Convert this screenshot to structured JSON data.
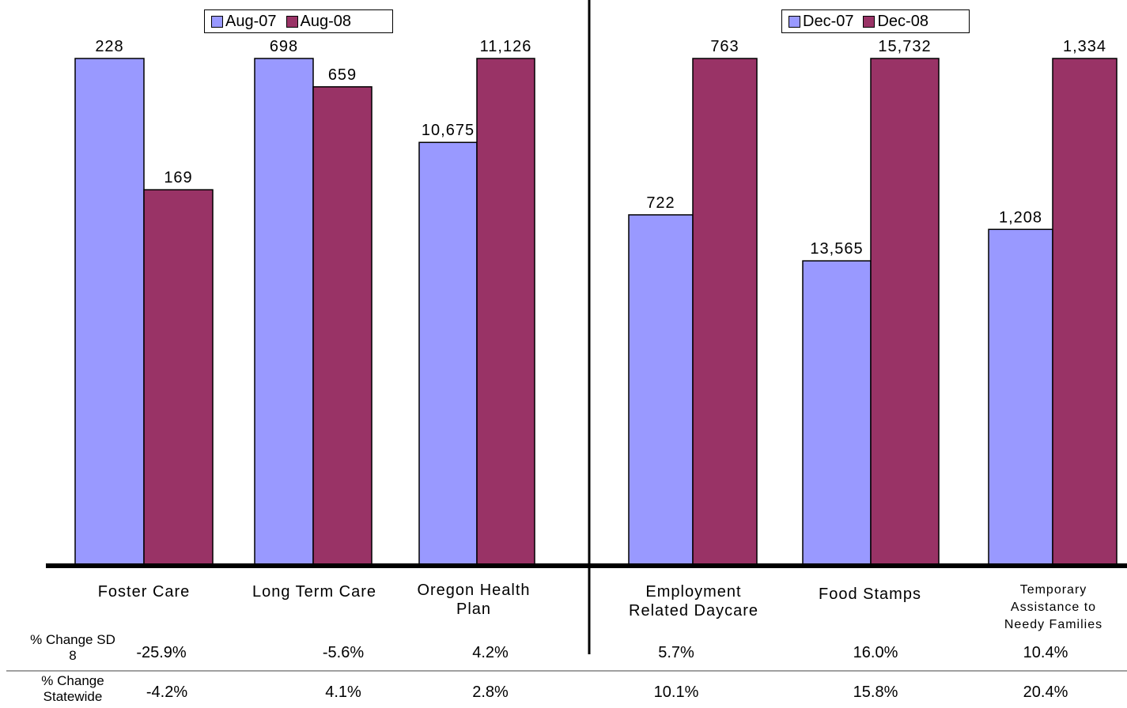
{
  "chart_data": {
    "type": "bar",
    "colors": {
      "first": "#9999ff",
      "second": "#993366"
    },
    "groups": [
      {
        "legend": [
          "Aug-07",
          "Aug-08"
        ],
        "categories": [
          "Foster Care",
          "Long Term Care",
          "Oregon Health Plan"
        ],
        "series": [
          {
            "name": "Aug-07",
            "values": [
              228,
              698,
              10675
            ],
            "labels": [
              "228",
              "698",
              "10,675"
            ]
          },
          {
            "name": "Aug-08",
            "values": [
              169,
              659,
              11126
            ],
            "labels": [
              "169",
              "659",
              "11,126"
            ]
          }
        ]
      },
      {
        "legend": [
          "Dec-07",
          "Dec-08"
        ],
        "categories": [
          "Employment Related Daycare",
          "Food Stamps",
          "Temporary Assistance to Needy Families"
        ],
        "series": [
          {
            "name": "Dec-07",
            "values": [
              722,
              13565,
              1208
            ],
            "labels": [
              "722",
              "13,565",
              "1,208"
            ]
          },
          {
            "name": "Dec-08",
            "values": [
              763,
              15732,
              1334
            ],
            "labels": [
              "763",
              "15,732",
              "1,334"
            ]
          }
        ]
      }
    ],
    "scale_note": "each category is scaled independently"
  },
  "legend_left": {
    "a": "Aug-07",
    "b": "Aug-08"
  },
  "legend_right": {
    "a": "Dec-07",
    "b": "Dec-08"
  },
  "categories": {
    "c1": "Foster Care",
    "c2": "Long Term Care",
    "c3": "Oregon Health Plan",
    "c4": "Employment Related Daycare",
    "c5": "Food Stamps",
    "c6": "Temporary Assistance to Needy Families"
  },
  "table": {
    "row1_label": "% Change SD 8",
    "row1": [
      "-25.9%",
      "-5.6%",
      "4.2%",
      "5.7%",
      "16.0%",
      "10.4%"
    ],
    "row2_label": "% Change Statewide",
    "row2": [
      "-4.2%",
      "4.1%",
      "2.8%",
      "10.1%",
      "15.8%",
      "20.4%"
    ]
  }
}
